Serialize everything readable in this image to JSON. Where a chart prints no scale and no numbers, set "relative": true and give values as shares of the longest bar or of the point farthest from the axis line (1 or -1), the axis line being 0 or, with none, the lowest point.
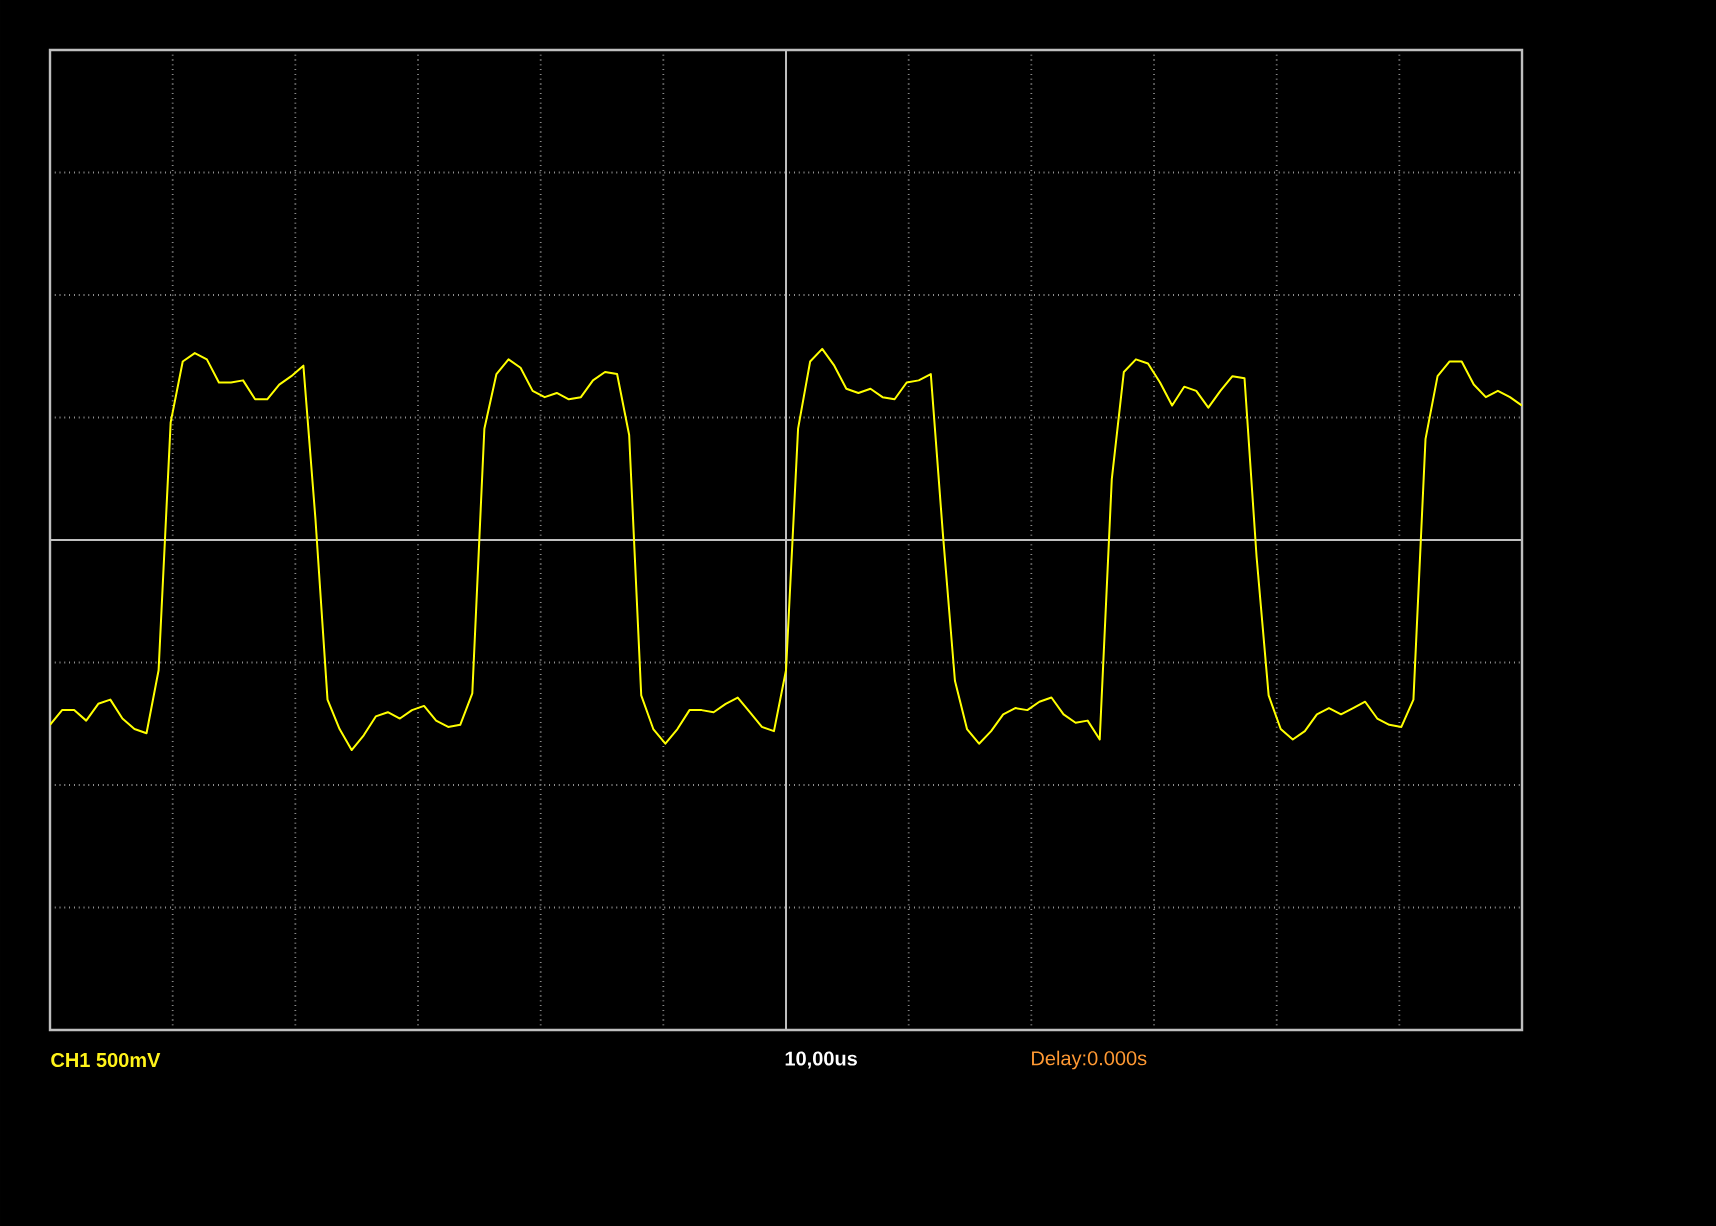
{
  "chart_data": {
    "type": "line",
    "relative": true,
    "grid": true,
    "line_style": "solid",
    "marker": "none",
    "categories": [
      null,
      null,
      null,
      null,
      null,
      null,
      null,
      null,
      null,
      null,
      null,
      null,
      null,
      null,
      null,
      null,
      null,
      null,
      null,
      null,
      null,
      null,
      null,
      null,
      null,
      null,
      null,
      null,
      null,
      null,
      null,
      null,
      null,
      null,
      null,
      null,
      null,
      null,
      null,
      null,
      null,
      null,
      null,
      null,
      null,
      null,
      null,
      null,
      null,
      null,
      null,
      null,
      null,
      null,
      null,
      null,
      null,
      null,
      null,
      null,
      null,
      null,
      null,
      null,
      null,
      null,
      null,
      null,
      null,
      null,
      null,
      null,
      null,
      null,
      null,
      null,
      null,
      null,
      null,
      null,
      null,
      null,
      null,
      null,
      null,
      null,
      null,
      null,
      null,
      null,
      null,
      null,
      null,
      null,
      null,
      null,
      null,
      null,
      null,
      null,
      null,
      null,
      null,
      null,
      null,
      null,
      null,
      null,
      null,
      null,
      null,
      null,
      null,
      null,
      null,
      null,
      null,
      null,
      null,
      null,
      null,
      null,
      null
    ],
    "series": [
      {
        "color": "#ffff00",
        "values": [
          -0.88,
          -0.81,
          -0.81,
          -0.86,
          -0.78,
          -0.76,
          -0.85,
          -0.9,
          -0.92,
          -0.62,
          0.56,
          0.85,
          0.89,
          0.86,
          0.75,
          0.75,
          0.76,
          0.67,
          0.67,
          0.74,
          0.78,
          0.83,
          0.1,
          -0.76,
          -0.9,
          -1.0,
          -0.93,
          -0.84,
          -0.82,
          -0.85,
          -0.81,
          -0.79,
          -0.86,
          -0.89,
          -0.88,
          -0.73,
          0.53,
          0.79,
          0.86,
          0.82,
          0.71,
          0.68,
          0.7,
          0.67,
          0.68,
          0.76,
          0.8,
          0.79,
          0.5,
          -0.74,
          -0.9,
          -0.97,
          -0.9,
          -0.81,
          -0.81,
          -0.82,
          -0.78,
          -0.75,
          -0.82,
          -0.89,
          -0.91,
          -0.62,
          0.53,
          0.85,
          0.91,
          0.83,
          0.72,
          0.7,
          0.72,
          0.68,
          0.67,
          0.75,
          0.76,
          0.79,
          0.03,
          -0.67,
          -0.9,
          -0.97,
          -0.91,
          -0.83,
          -0.8,
          -0.81,
          -0.77,
          -0.75,
          -0.83,
          -0.87,
          -0.86,
          -0.95,
          0.29,
          0.8,
          0.86,
          0.84,
          0.75,
          0.64,
          0.73,
          0.71,
          0.63,
          0.71,
          0.78,
          0.77,
          -0.08,
          -0.74,
          -0.9,
          -0.95,
          -0.91,
          -0.83,
          -0.8,
          -0.83,
          -0.8,
          -0.77,
          -0.85,
          -0.88,
          -0.89,
          -0.76,
          0.48,
          0.78,
          0.85,
          0.85,
          0.74,
          0.68,
          0.71,
          0.68,
          0.64
        ]
      }
    ],
    "annotations": [
      "CH1 500mV",
      "10,00us",
      "Delay:0.000s"
    ]
  }
}
